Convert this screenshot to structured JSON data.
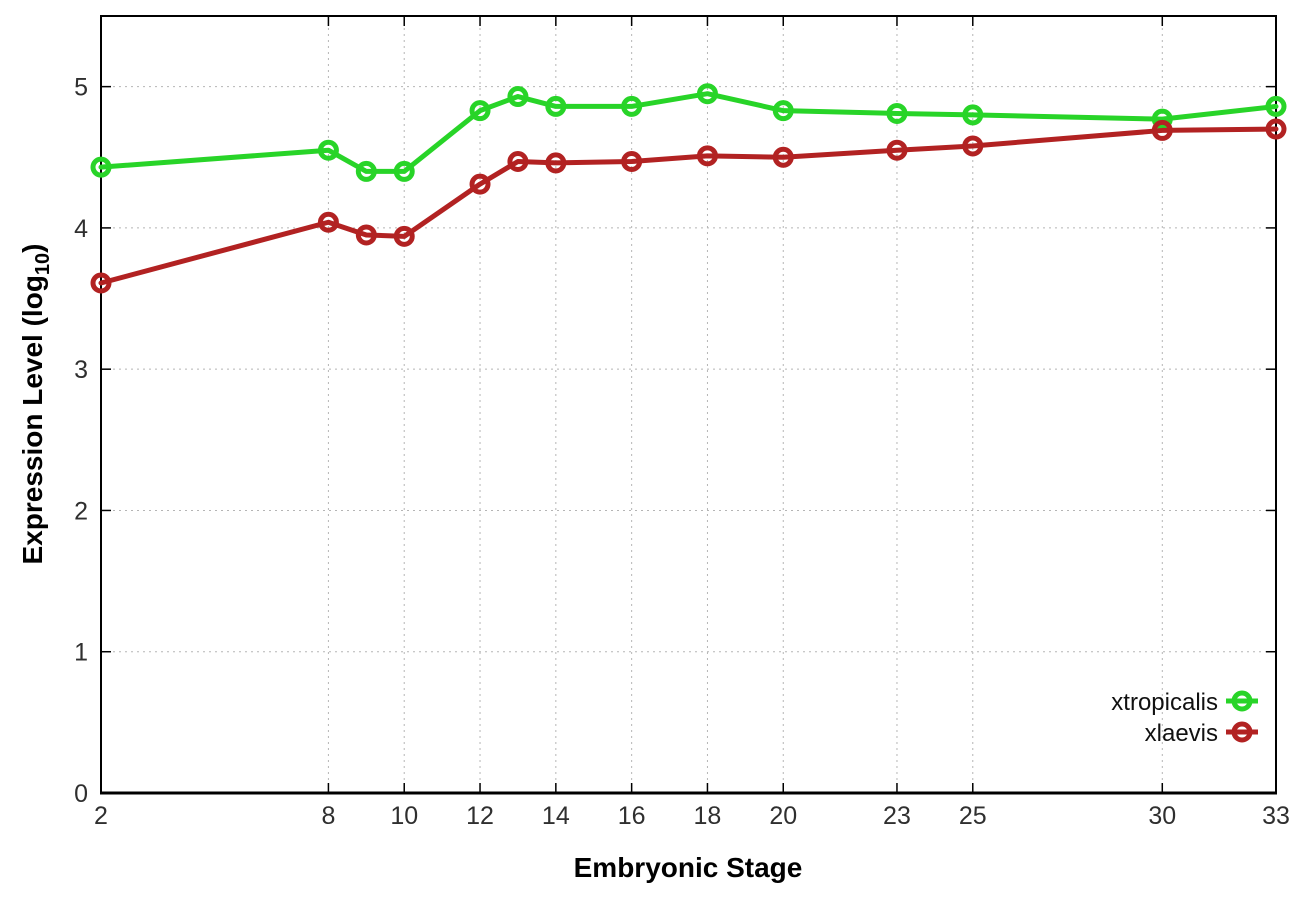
{
  "figure": {
    "background": "#ffffff",
    "frame_color": "#000000",
    "grid_color": "#b5b5b5",
    "tick_label_color": "#2f2f2f"
  },
  "chart_data": {
    "type": "line",
    "title": "",
    "xlabel": "Embryonic Stage",
    "ylabel": "Expression Level (log10)",
    "ylabel_parts": {
      "pre": "Expression Level (log",
      "sub": "10",
      "post": ")"
    },
    "x": [
      2,
      8,
      9,
      10,
      12,
      13,
      14,
      16,
      18,
      20,
      23,
      25,
      30,
      33
    ],
    "series": [
      {
        "name": "xtropicalis",
        "color": "#28d428",
        "values": [
          4.43,
          4.55,
          4.4,
          4.4,
          4.83,
          4.93,
          4.86,
          4.86,
          4.95,
          4.83,
          4.81,
          4.8,
          4.77,
          4.86
        ]
      },
      {
        "name": "xlaevis",
        "color": "#b22222",
        "values": [
          3.61,
          4.04,
          3.95,
          3.94,
          4.31,
          4.47,
          4.46,
          4.47,
          4.51,
          4.5,
          4.55,
          4.58,
          4.69,
          4.7
        ]
      }
    ],
    "xticks": [
      2,
      8,
      10,
      12,
      14,
      16,
      18,
      20,
      23,
      25,
      30,
      33
    ],
    "yticks": [
      0,
      1,
      2,
      3,
      4,
      5
    ],
    "xlim": [
      2,
      33
    ],
    "ylim": [
      0,
      5.5
    ],
    "grid": true,
    "legend_position": "bottom-right",
    "marker": "open-circle"
  }
}
